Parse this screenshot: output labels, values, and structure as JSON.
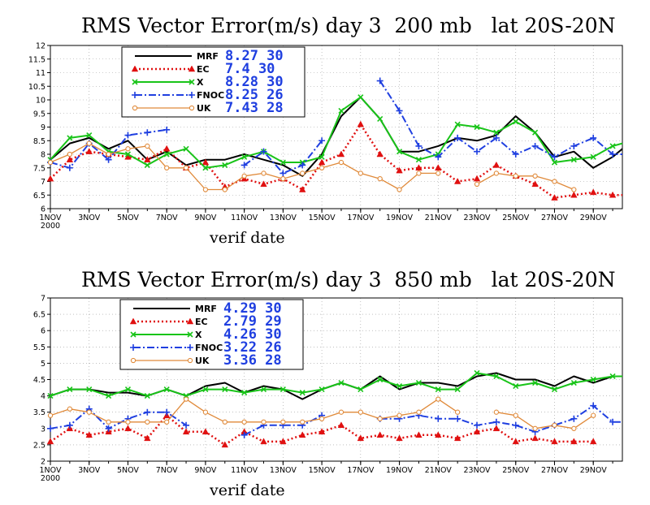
{
  "chart_data": [
    {
      "type": "line",
      "title": "RMS Vector Error(m/s) day 3  200 mb   lat 20S-20N",
      "xlabel": "verif date",
      "ylim": [
        6,
        12
      ],
      "yticks": [
        "6",
        "6.5",
        "7",
        "7.5",
        "8",
        "8.5",
        "9",
        "9.5",
        "10",
        "10.5",
        "11",
        "11.5",
        "12"
      ],
      "xticks": [
        {
          "label": "1NOV",
          "sub": "2000",
          "day": 1
        },
        {
          "label": "3NOV",
          "day": 3
        },
        {
          "label": "5NOV",
          "day": 5
        },
        {
          "label": "7NOV",
          "day": 7
        },
        {
          "label": "9NOV",
          "day": 9
        },
        {
          "label": "11NOV",
          "day": 11
        },
        {
          "label": "13NOV",
          "day": 13
        },
        {
          "label": "15NOV",
          "day": 15
        },
        {
          "label": "17NOV",
          "day": 17
        },
        {
          "label": "19NOV",
          "day": 19
        },
        {
          "label": "21NOV",
          "day": 21
        },
        {
          "label": "23NOV",
          "day": 23
        },
        {
          "label": "25NOV",
          "day": 25
        },
        {
          "label": "27NOV",
          "day": 27
        },
        {
          "label": "29NOV",
          "day": 29
        }
      ],
      "xlim": [
        1,
        30.5
      ],
      "x": [
        1,
        2,
        3,
        4,
        5,
        6,
        7,
        8,
        9,
        10,
        11,
        12,
        13,
        14,
        15,
        16,
        17,
        18,
        19,
        20,
        21,
        22,
        23,
        24,
        25,
        26,
        27,
        28,
        29,
        30,
        30.5
      ],
      "grid": true,
      "legend_position": "top-left",
      "series": [
        {
          "name": "MRF",
          "stat": "8.27 30",
          "color": "#000000",
          "dash": "",
          "marker": "none",
          "width": 2,
          "values": [
            7.8,
            8.4,
            8.6,
            8.2,
            8.5,
            7.8,
            8.1,
            7.6,
            7.8,
            7.8,
            8.0,
            7.8,
            7.6,
            7.2,
            8.0,
            9.4,
            10.1,
            9.3,
            8.1,
            8.1,
            8.3,
            8.6,
            8.5,
            8.7,
            9.4,
            8.8,
            7.9,
            8.1,
            7.5,
            7.9,
            8.2
          ]
        },
        {
          "name": "EC",
          "stat": "7.4 30",
          "color": "#e01010",
          "dash": "2,3",
          "marker": "triangle",
          "width": 2.5,
          "values": [
            7.1,
            7.8,
            8.1,
            8.0,
            7.9,
            7.8,
            8.2,
            7.5,
            7.7,
            6.8,
            7.1,
            6.9,
            7.1,
            6.7,
            7.7,
            8.0,
            9.1,
            8.0,
            7.4,
            7.5,
            7.5,
            7.0,
            7.1,
            7.6,
            7.2,
            6.9,
            6.4,
            6.5,
            6.6,
            6.5,
            6.5
          ]
        },
        {
          "name": "X",
          "stat": "8.28 30",
          "color": "#19c419",
          "dash": "",
          "marker": "x",
          "width": 2,
          "values": [
            7.8,
            8.6,
            8.7,
            8.1,
            8.0,
            7.6,
            8.0,
            8.2,
            7.5,
            7.6,
            7.9,
            8.1,
            7.7,
            7.7,
            7.9,
            9.6,
            10.1,
            9.3,
            8.1,
            7.8,
            8.0,
            9.1,
            9.0,
            8.8,
            9.2,
            8.8,
            7.7,
            7.8,
            7.9,
            8.3,
            8.4
          ]
        },
        {
          "name": "FNOC",
          "stat": "8.25 26",
          "color": "#1f3fe0",
          "dash": "9,3,2,3",
          "marker": "plus",
          "width": 2,
          "values": [
            7.7,
            7.5,
            8.4,
            7.8,
            8.7,
            8.8,
            8.9,
            null,
            null,
            null,
            7.6,
            8.1,
            7.3,
            7.6,
            8.5,
            null,
            null,
            10.7,
            9.6,
            8.3,
            7.9,
            8.6,
            8.1,
            8.6,
            8.0,
            8.3,
            7.9,
            8.3,
            8.6,
            8.0,
            8.0
          ]
        },
        {
          "name": "UK",
          "stat": "7.43 28",
          "color": "#e08a3a",
          "dash": "",
          "marker": "circle",
          "width": 1.3,
          "values": [
            7.7,
            8.0,
            8.4,
            8.0,
            8.2,
            8.3,
            7.5,
            7.5,
            6.7,
            6.7,
            7.2,
            7.3,
            7.1,
            7.3,
            7.5,
            7.7,
            7.3,
            7.1,
            6.7,
            7.3,
            7.3,
            null,
            6.9,
            7.3,
            7.2,
            7.2,
            7.0,
            6.7,
            null,
            null,
            7.8
          ]
        }
      ]
    },
    {
      "type": "line",
      "title": "RMS Vector Error(m/s) day 3  850 mb   lat 20S-20N",
      "xlabel": "verif date",
      "ylim": [
        2,
        7
      ],
      "yticks": [
        "2",
        "2.5",
        "3",
        "3.5",
        "4",
        "4.5",
        "5",
        "5.5",
        "6",
        "6.5",
        "7"
      ],
      "xticks": [
        {
          "label": "1NOV",
          "sub": "2000",
          "day": 1
        },
        {
          "label": "3NOV",
          "day": 3
        },
        {
          "label": "5NOV",
          "day": 5
        },
        {
          "label": "7NOV",
          "day": 7
        },
        {
          "label": "9NOV",
          "day": 9
        },
        {
          "label": "11NOV",
          "day": 11
        },
        {
          "label": "13NOV",
          "day": 13
        },
        {
          "label": "15NOV",
          "day": 15
        },
        {
          "label": "17NOV",
          "day": 17
        },
        {
          "label": "19NOV",
          "day": 19
        },
        {
          "label": "21NOV",
          "day": 21
        },
        {
          "label": "23NOV",
          "day": 23
        },
        {
          "label": "25NOV",
          "day": 25
        },
        {
          "label": "27NOV",
          "day": 27
        },
        {
          "label": "29NOV",
          "day": 29
        }
      ],
      "xlim": [
        1,
        30.5
      ],
      "x": [
        1,
        2,
        3,
        4,
        5,
        6,
        7,
        8,
        9,
        10,
        11,
        12,
        13,
        14,
        15,
        16,
        17,
        18,
        19,
        20,
        21,
        22,
        23,
        24,
        25,
        26,
        27,
        28,
        29,
        30,
        30.5
      ],
      "grid": true,
      "legend_position": "top-left",
      "series": [
        {
          "name": "MRF",
          "stat": "4.29 30",
          "color": "#000000",
          "dash": "",
          "marker": "none",
          "width": 2,
          "values": [
            4.0,
            4.2,
            4.2,
            4.1,
            4.1,
            4.0,
            4.2,
            4.0,
            4.3,
            4.4,
            4.1,
            4.3,
            4.2,
            3.9,
            4.2,
            4.4,
            4.2,
            4.6,
            4.2,
            4.4,
            4.4,
            4.3,
            4.6,
            4.7,
            4.5,
            4.5,
            4.3,
            4.6,
            4.4,
            4.6,
            4.6
          ]
        },
        {
          "name": "EC",
          "stat": "2.79 29",
          "color": "#e01010",
          "dash": "2,3",
          "marker": "triangle",
          "width": 2.5,
          "values": [
            2.6,
            3.0,
            2.8,
            2.9,
            3.0,
            2.7,
            3.4,
            2.9,
            2.9,
            2.5,
            2.9,
            2.6,
            2.6,
            2.8,
            2.9,
            3.1,
            2.7,
            2.8,
            2.7,
            2.8,
            2.8,
            2.7,
            2.9,
            3.0,
            2.6,
            2.7,
            2.6,
            2.6,
            2.6,
            null,
            null
          ]
        },
        {
          "name": "X",
          "stat": "4.26 30",
          "color": "#19c419",
          "dash": "",
          "marker": "x",
          "width": 2,
          "values": [
            4.0,
            4.2,
            4.2,
            4.0,
            4.2,
            4.0,
            4.2,
            4.0,
            4.2,
            4.2,
            4.1,
            4.2,
            4.2,
            4.1,
            4.2,
            4.4,
            4.2,
            4.5,
            4.3,
            4.4,
            4.2,
            4.2,
            4.7,
            4.6,
            4.3,
            4.4,
            4.2,
            4.4,
            4.5,
            4.6,
            4.6
          ]
        },
        {
          "name": "FNOC",
          "stat": "3.22 26",
          "color": "#1f3fe0",
          "dash": "9,3,2,3",
          "marker": "plus",
          "width": 2,
          "values": [
            3.0,
            3.1,
            3.6,
            3.0,
            3.3,
            3.5,
            3.5,
            3.1,
            null,
            null,
            2.8,
            3.1,
            3.1,
            3.1,
            3.4,
            null,
            null,
            3.3,
            3.3,
            3.4,
            3.3,
            3.3,
            3.1,
            3.2,
            3.1,
            2.9,
            3.1,
            3.3,
            3.7,
            3.2,
            3.2
          ]
        },
        {
          "name": "UK",
          "stat": "3.36 28",
          "color": "#e08a3a",
          "dash": "",
          "marker": "circle",
          "width": 1.3,
          "values": [
            3.4,
            3.6,
            3.5,
            3.2,
            3.2,
            3.2,
            3.2,
            3.9,
            3.5,
            3.2,
            3.2,
            3.2,
            3.2,
            3.2,
            3.3,
            3.5,
            3.5,
            3.3,
            3.4,
            3.5,
            3.9,
            3.5,
            null,
            3.5,
            3.4,
            3.0,
            3.1,
            3.0,
            3.4,
            null,
            3.8
          ]
        }
      ]
    }
  ]
}
